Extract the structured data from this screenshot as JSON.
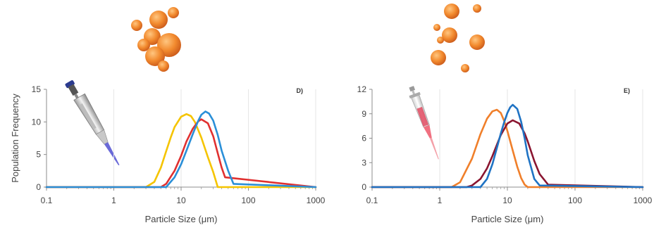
{
  "chart_data": [
    {
      "type": "line",
      "panel_label": "D)",
      "xlabel": "Particle Size (μm)",
      "ylabel": "Population Frequency",
      "x_scale": "log",
      "xlim": [
        0.1,
        1000
      ],
      "ylim": [
        0,
        15
      ],
      "x_ticks": [
        "0.1",
        "1",
        "10",
        "100",
        "1000"
      ],
      "y_ticks": [
        "0",
        "5",
        "10",
        "15"
      ],
      "grid": "vertical",
      "series": [
        {
          "color": "#f5c400",
          "x": [
            0.1,
            3,
            4,
            5,
            6,
            7,
            8,
            10,
            12,
            14,
            16,
            20,
            25,
            30,
            35,
            1000
          ],
          "y": [
            0,
            0,
            0.8,
            3.0,
            5.5,
            7.6,
            9.2,
            10.8,
            11.2,
            10.9,
            10.0,
            7.6,
            4.6,
            2.3,
            0,
            0
          ]
        },
        {
          "color": "#e03030",
          "x": [
            0.1,
            5,
            6,
            8,
            10,
            12,
            15,
            18,
            20,
            25,
            30,
            35,
            40,
            45,
            1000
          ],
          "y": [
            0,
            0,
            0.5,
            2.5,
            4.8,
            7.0,
            9.0,
            10.1,
            10.4,
            9.8,
            7.8,
            5.2,
            3.0,
            1.5,
            0
          ]
        },
        {
          "color": "#2a8fd8",
          "x": [
            0.1,
            6,
            8,
            10,
            12,
            15,
            18,
            20,
            23,
            26,
            30,
            35,
            40,
            50,
            60,
            1000
          ],
          "y": [
            0,
            0,
            1.5,
            3.5,
            5.6,
            8.2,
            10.2,
            11.1,
            11.6,
            11.3,
            10.2,
            8.0,
            5.6,
            2.5,
            0.5,
            0
          ]
        }
      ]
    },
    {
      "type": "line",
      "panel_label": "E)",
      "xlabel": "Particle Size (μm)",
      "ylabel": "",
      "x_scale": "log",
      "xlim": [
        0.1,
        1000
      ],
      "ylim": [
        0,
        12
      ],
      "x_ticks": [
        "0.1",
        "1",
        "10",
        "100",
        "1000"
      ],
      "y_ticks": [
        "0",
        "3",
        "6",
        "9",
        "12"
      ],
      "grid": "vertical",
      "series": [
        {
          "color": "#f07f2a",
          "x": [
            0.1,
            1.5,
            2,
            3,
            4,
            5,
            6,
            7,
            8,
            9,
            10,
            12,
            14,
            16,
            18,
            20,
            1000
          ],
          "y": [
            0,
            0,
            0.6,
            3.5,
            6.5,
            8.4,
            9.3,
            9.5,
            9.1,
            8.1,
            6.9,
            4.5,
            2.5,
            1.1,
            0.3,
            0,
            0
          ]
        },
        {
          "color": "#8a1530",
          "x": [
            0.1,
            2.5,
            3,
            4,
            5,
            6,
            7,
            8,
            10,
            12,
            15,
            18,
            20,
            25,
            30,
            40,
            1000
          ],
          "y": [
            0,
            0,
            0.2,
            1.0,
            2.3,
            3.8,
            5.2,
            6.4,
            7.8,
            8.2,
            7.8,
            6.6,
            5.6,
            3.2,
            1.6,
            0.3,
            0
          ]
        },
        {
          "color": "#1f73c4",
          "x": [
            0.1,
            4,
            5,
            6,
            7,
            8,
            9,
            10,
            11,
            12,
            14,
            16,
            18,
            20,
            25,
            30,
            1000
          ],
          "y": [
            0,
            0,
            1.0,
            2.8,
            4.8,
            6.6,
            8.0,
            9.1,
            9.8,
            10.1,
            9.6,
            8.0,
            6.0,
            3.9,
            1.0,
            0.2,
            0
          ]
        }
      ]
    }
  ]
}
